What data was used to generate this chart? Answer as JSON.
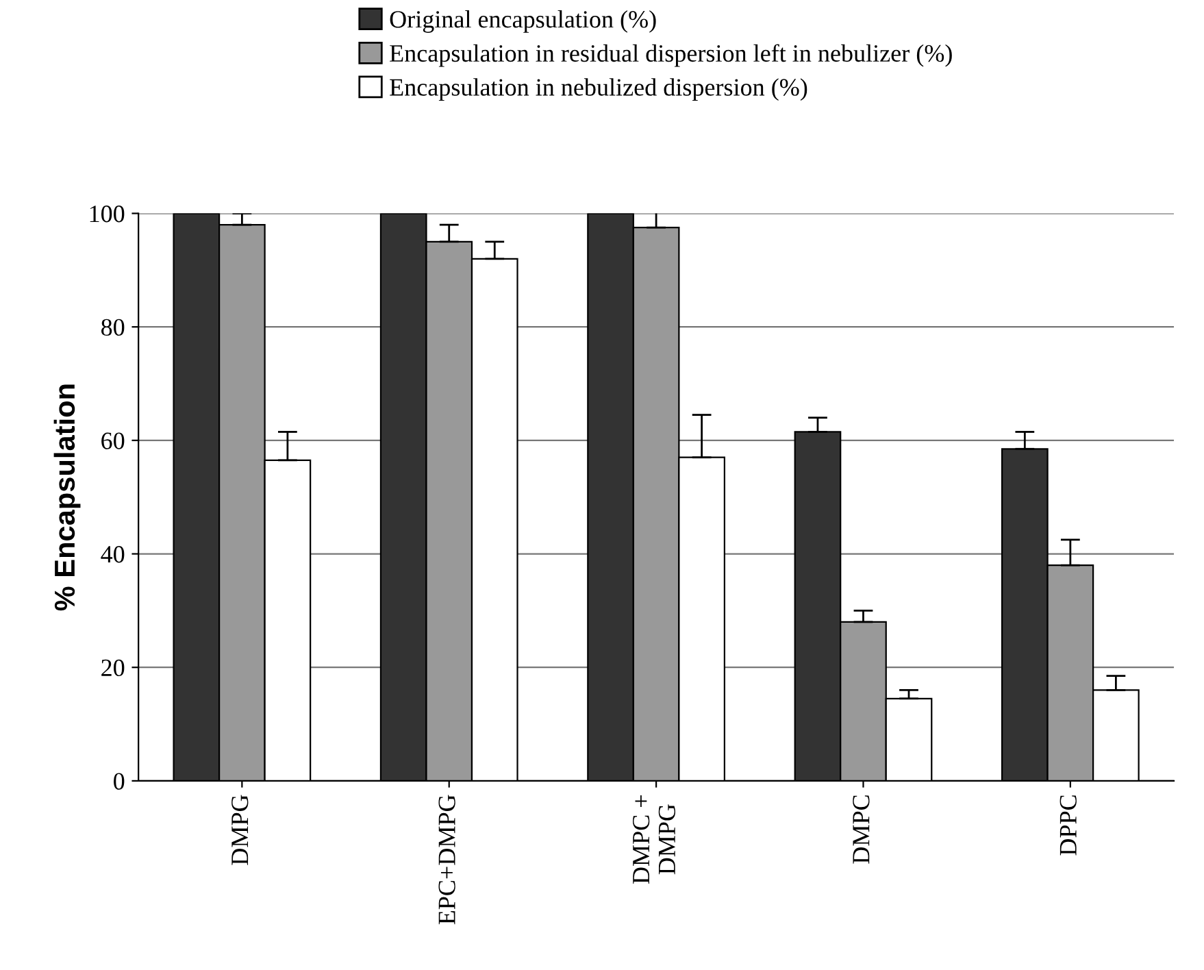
{
  "chart_data": {
    "type": "bar",
    "ylabel": "% Encapsulation",
    "categories": [
      "DMPG",
      "EPC+DMPG",
      "DMPC +\nDMPG",
      "DMPC",
      "DPPC"
    ],
    "series": [
      {
        "name": "Original encapsulation (%)",
        "color": "#333333",
        "values": [
          100,
          100,
          100,
          61.5,
          58.5
        ],
        "errors": [
          null,
          null,
          null,
          [
            61.5,
            64
          ],
          [
            58.5,
            61.5
          ]
        ]
      },
      {
        "name": "Encapsulation in residual dispersion left in nebulizer (%)",
        "color": "#999999",
        "values": [
          98,
          95,
          97.5,
          28,
          38
        ],
        "errors": [
          [
            98,
            100
          ],
          [
            95,
            98
          ],
          [
            97.5,
            100.5
          ],
          [
            28,
            30
          ],
          [
            38,
            42.5
          ]
        ]
      },
      {
        "name": "Encapsulation in nebulized dispersion (%)",
        "color": "#ffffff",
        "values": [
          56.5,
          92,
          57,
          14.5,
          16
        ],
        "errors": [
          [
            56.5,
            61.5
          ],
          [
            92,
            95
          ],
          [
            57,
            64.5
          ],
          [
            14.5,
            16
          ],
          [
            16,
            18.5
          ]
        ]
      }
    ],
    "ylim": [
      0,
      100
    ],
    "yticks": [
      0,
      20,
      40,
      60,
      80,
      100
    ],
    "grid": "y",
    "legend": "top"
  }
}
